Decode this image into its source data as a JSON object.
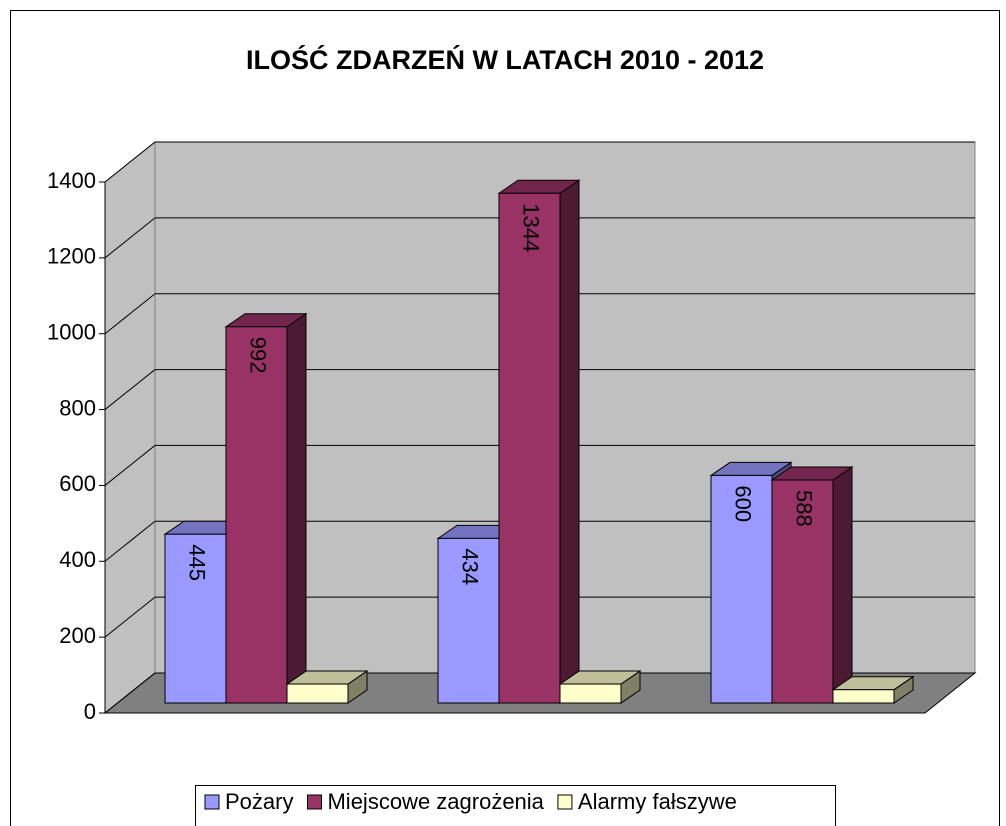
{
  "chart_data": {
    "type": "bar3d",
    "title": "ILOŚĆ ZDARZEŃ W LATACH 2010 - 2012",
    "categories": [
      null,
      null,
      null
    ],
    "series": [
      {
        "name": "Pożary",
        "color": "#9999ff",
        "values": [
          445,
          434,
          600
        ]
      },
      {
        "name": "Miejscowe zagrożenia",
        "color": "#993366",
        "values": [
          992,
          1344,
          588
        ]
      },
      {
        "name": "Alarmy fałszywe",
        "color": "#ffffcc",
        "values": [
          50,
          50,
          35
        ]
      }
    ],
    "data_labels": [
      true,
      true,
      false
    ],
    "ylim": [
      0,
      1400
    ],
    "yticks": [
      0,
      200,
      400,
      600,
      800,
      1000,
      1200,
      1400
    ],
    "grid": true,
    "legend": "bottom"
  }
}
